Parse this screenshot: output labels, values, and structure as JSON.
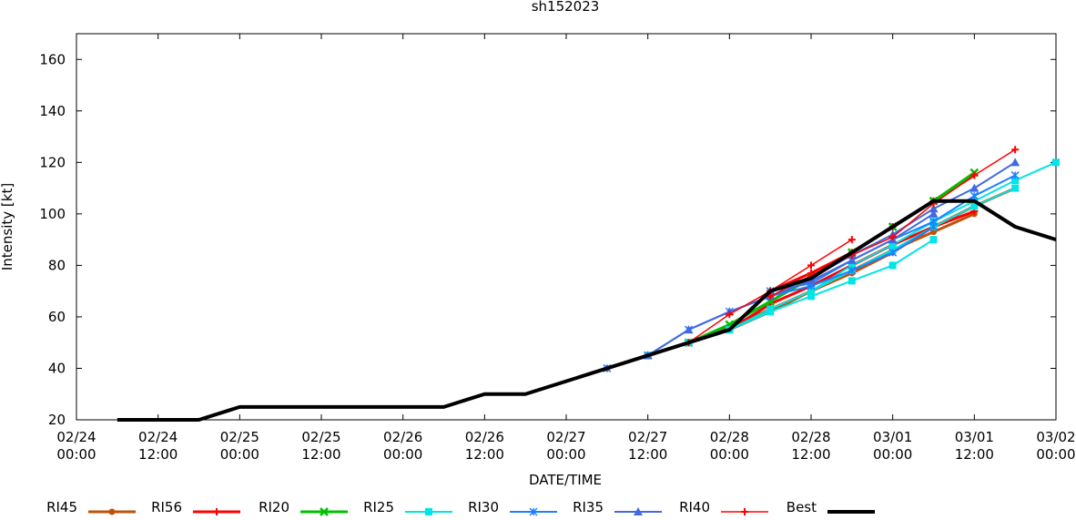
{
  "chart_data": {
    "type": "line",
    "title": "sh152023",
    "xlabel": "DATE/TIME",
    "ylabel": "Intensity [kt]",
    "x_unit": "hours since 02/24 00:00",
    "xlim": [
      0,
      144
    ],
    "ylim": [
      20,
      170
    ],
    "yticks": [
      20,
      40,
      60,
      80,
      100,
      120,
      140,
      160
    ],
    "xticks": [
      {
        "h": 0,
        "date": "02/24",
        "time": "00:00"
      },
      {
        "h": 12,
        "date": "02/24",
        "time": "12:00"
      },
      {
        "h": 24,
        "date": "02/25",
        "time": "00:00"
      },
      {
        "h": 36,
        "date": "02/25",
        "time": "12:00"
      },
      {
        "h": 48,
        "date": "02/26",
        "time": "00:00"
      },
      {
        "h": 60,
        "date": "02/26",
        "time": "12:00"
      },
      {
        "h": 72,
        "date": "02/27",
        "time": "00:00"
      },
      {
        "h": 84,
        "date": "02/27",
        "time": "12:00"
      },
      {
        "h": 96,
        "date": "02/28",
        "time": "00:00"
      },
      {
        "h": 108,
        "date": "02/28",
        "time": "12:00"
      },
      {
        "h": 120,
        "date": "03/01",
        "time": "00:00"
      },
      {
        "h": 132,
        "date": "03/01",
        "time": "12:00"
      },
      {
        "h": 144,
        "date": "03/02",
        "time": "00:00"
      }
    ],
    "legend_position": "bottom",
    "series": [
      {
        "name": "RI45",
        "color": "#c0500a",
        "width": 3,
        "marker": "circle",
        "runs": [
          [
            [
              78,
              40
            ],
            [
              84,
              45
            ],
            [
              90,
              50
            ],
            [
              96,
              55
            ],
            [
              102,
              62
            ],
            [
              108,
              70
            ],
            [
              114,
              78
            ],
            [
              120,
              86
            ],
            [
              126,
              93
            ],
            [
              132,
              100
            ]
          ],
          [
            [
              90,
              50
            ],
            [
              96,
              56
            ],
            [
              102,
              63
            ],
            [
              108,
              70
            ],
            [
              114,
              77
            ],
            [
              120,
              85
            ],
            [
              126,
              95
            ],
            [
              132,
              103
            ],
            [
              138,
              110
            ]
          ]
        ]
      },
      {
        "name": "RI56",
        "color": "#ff0000",
        "width": 3,
        "marker": "plus",
        "runs": [
          [
            [
              78,
              40
            ],
            [
              84,
              45
            ],
            [
              90,
              50
            ],
            [
              96,
              55
            ],
            [
              102,
              65
            ],
            [
              108,
              72
            ],
            [
              114,
              80
            ],
            [
              120,
              88
            ],
            [
              126,
              95
            ],
            [
              132,
              101
            ]
          ],
          [
            [
              96,
              55
            ],
            [
              102,
              70
            ],
            [
              108,
              77
            ],
            [
              114,
              85
            ],
            [
              120,
              95
            ],
            [
              126,
              105
            ],
            [
              132,
              115
            ]
          ]
        ]
      },
      {
        "name": "RI20",
        "color": "#00c000",
        "width": 3,
        "marker": "x",
        "runs": [
          [
            [
              90,
              50
            ],
            [
              96,
              57
            ],
            [
              102,
              66
            ],
            [
              108,
              75
            ],
            [
              114,
              85
            ],
            [
              120,
              95
            ],
            [
              126,
              105
            ],
            [
              132,
              116
            ]
          ]
        ]
      },
      {
        "name": "RI25",
        "color": "#00e5e5",
        "width": 2,
        "marker": "square",
        "runs": [
          [
            [
              84,
              45
            ],
            [
              90,
              50
            ],
            [
              96,
              55
            ],
            [
              102,
              62
            ],
            [
              108,
              68
            ],
            [
              114,
              74
            ],
            [
              120,
              80
            ],
            [
              126,
              90
            ]
          ],
          [
            [
              96,
              55
            ],
            [
              102,
              63
            ],
            [
              108,
              70
            ],
            [
              114,
              78
            ],
            [
              120,
              86
            ],
            [
              126,
              95
            ],
            [
              132,
              103
            ],
            [
              138,
              110
            ]
          ],
          [
            [
              108,
              70
            ],
            [
              114,
              80
            ],
            [
              120,
              88
            ],
            [
              126,
              97
            ],
            [
              132,
              105
            ],
            [
              138,
              113
            ],
            [
              144,
              120
            ]
          ]
        ]
      },
      {
        "name": "RI30",
        "color": "#1e80ff",
        "width": 2,
        "marker": "star",
        "runs": [
          [
            [
              78,
              40
            ],
            [
              84,
              45
            ],
            [
              90,
              55
            ],
            [
              96,
              62
            ],
            [
              102,
              68
            ],
            [
              108,
              72
            ],
            [
              114,
              78
            ],
            [
              120,
              85
            ],
            [
              126,
              95
            ]
          ],
          [
            [
              102,
              70
            ],
            [
              108,
              73
            ],
            [
              114,
              82
            ],
            [
              120,
              90
            ],
            [
              126,
              97
            ],
            [
              132,
              107
            ],
            [
              138,
              115
            ]
          ]
        ]
      },
      {
        "name": "RI35",
        "color": "#4169e1",
        "width": 2,
        "marker": "triangle",
        "runs": [
          [
            [
              84,
              45
            ],
            [
              90,
              55
            ],
            [
              96,
              62
            ],
            [
              102,
              68
            ],
            [
              108,
              74
            ],
            [
              114,
              82
            ],
            [
              120,
              90
            ],
            [
              126,
              100
            ]
          ],
          [
            [
              102,
              70
            ],
            [
              108,
              75
            ],
            [
              114,
              84
            ],
            [
              120,
              92
            ],
            [
              126,
              102
            ],
            [
              132,
              110
            ],
            [
              138,
              120
            ]
          ]
        ]
      },
      {
        "name": "RI40",
        "color": "#ff0000",
        "width": 1.5,
        "marker": "plus",
        "runs": [
          [
            [
              90,
              50
            ],
            [
              96,
              61
            ],
            [
              102,
              70
            ],
            [
              108,
              80
            ],
            [
              114,
              90
            ]
          ],
          [
            [
              102,
              68
            ],
            [
              108,
              76
            ],
            [
              114,
              84
            ],
            [
              120,
              91
            ],
            [
              126,
              104
            ],
            [
              132,
              115
            ],
            [
              138,
              125
            ]
          ]
        ]
      },
      {
        "name": "Best",
        "color": "#000000",
        "width": 4,
        "marker": "none",
        "runs": [
          [
            [
              6,
              20
            ],
            [
              12,
              20
            ],
            [
              18,
              20
            ],
            [
              24,
              25
            ],
            [
              30,
              25
            ],
            [
              36,
              25
            ],
            [
              42,
              25
            ],
            [
              48,
              25
            ],
            [
              54,
              25
            ],
            [
              60,
              30
            ],
            [
              66,
              30
            ],
            [
              72,
              35
            ],
            [
              78,
              40
            ],
            [
              84,
              45
            ],
            [
              90,
              50
            ],
            [
              96,
              55
            ],
            [
              102,
              70
            ],
            [
              108,
              75
            ],
            [
              114,
              85
            ],
            [
              120,
              95
            ],
            [
              126,
              105
            ],
            [
              132,
              105
            ],
            [
              138,
              95
            ],
            [
              144,
              90
            ]
          ]
        ]
      }
    ]
  }
}
